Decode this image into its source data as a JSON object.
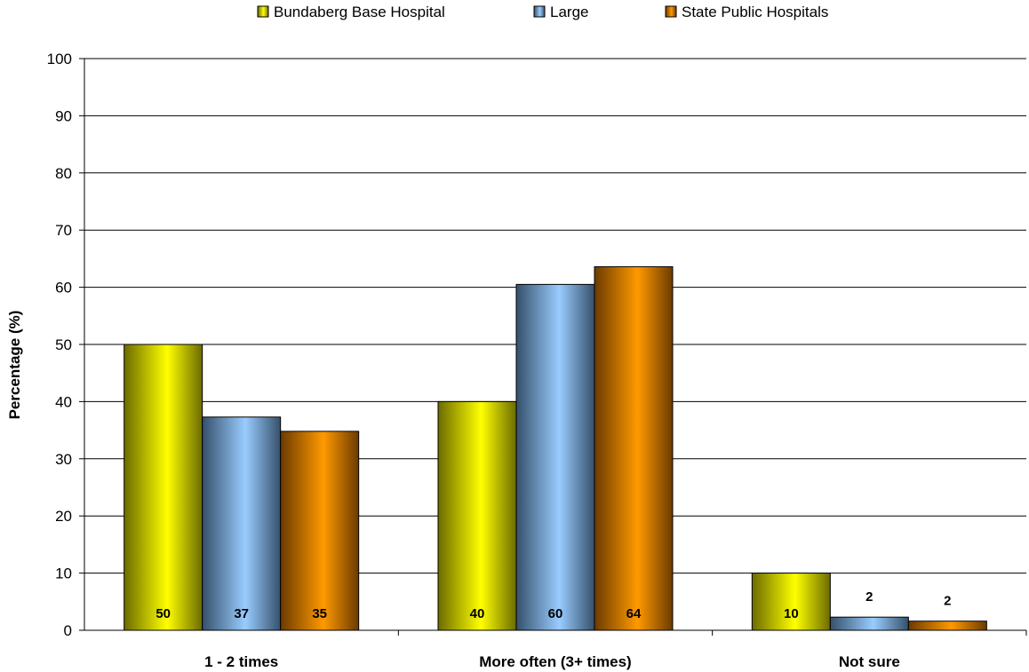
{
  "chart_data": {
    "type": "bar",
    "categories": [
      "1 - 2 times",
      "More often (3+ times)",
      "Not sure"
    ],
    "series": [
      {
        "name": "Bundaberg Base Hospital",
        "values": [
          50,
          40,
          10
        ],
        "labels": [
          "50",
          "40",
          "10"
        ],
        "color": "#ffff00",
        "dark": "#6b6b00"
      },
      {
        "name": "Large",
        "values": [
          37.3,
          60.5,
          2.3
        ],
        "labels": [
          "37",
          "60",
          "2"
        ],
        "color": "#99ccff",
        "dark": "#35506b"
      },
      {
        "name": "State Public Hospitals",
        "values": [
          34.8,
          63.6,
          1.6
        ],
        "labels": [
          "35",
          "64",
          "2"
        ],
        "color": "#ff9900",
        "dark": "#6b3a00"
      }
    ],
    "title": "",
    "xlabel": "",
    "ylabel": "Percentage (%)",
    "ylim": [
      0,
      100
    ],
    "yticks": [
      0,
      10,
      20,
      30,
      40,
      50,
      60,
      70,
      80,
      90,
      100
    ],
    "ytick_labels": [
      "0",
      "10",
      "20",
      "30",
      "40",
      "50",
      "60",
      "70",
      "80",
      "90",
      "100"
    ],
    "grid": true,
    "legend": "top-center"
  }
}
